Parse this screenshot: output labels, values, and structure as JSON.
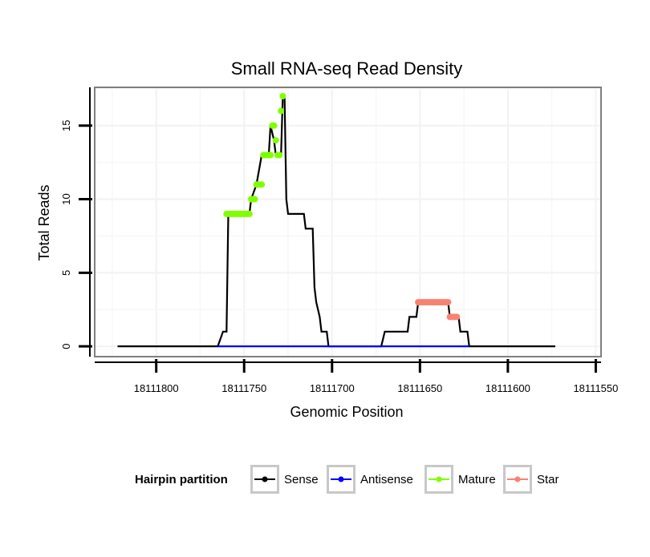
{
  "chart_data": {
    "type": "line",
    "title": "Small RNA-seq Read Density",
    "xlabel": "Genomic Position",
    "ylabel": "Total Reads",
    "x_reversed": true,
    "xlim": [
      111835,
      111547
    ],
    "ylim": [
      -0.7,
      17.6
    ],
    "x_ticks": [
      111800,
      111750,
      111700,
      111650,
      111600,
      111550
    ],
    "x_tick_labels": [
      "18111800",
      "18111750",
      "18111700",
      "18111650",
      "18111600",
      "18111550"
    ],
    "y_ticks": [
      0,
      5,
      10,
      15
    ],
    "y_tick_labels": [
      "0",
      "5",
      "10",
      "15"
    ],
    "grid": true,
    "legend": {
      "title": "Hairpin partition",
      "position": "bottom",
      "entries": [
        {
          "label": "Sense",
          "color": "#000000"
        },
        {
          "label": "Antisense",
          "color": "#0000ff"
        },
        {
          "label": "Mature",
          "color": "#7fff00"
        },
        {
          "label": "Star",
          "color": "#fa8072"
        }
      ]
    },
    "series": [
      {
        "name": "Sense",
        "color": "#000000",
        "points": [
          [
            111822,
            0
          ],
          [
            111765,
            0
          ],
          [
            111762,
            1
          ],
          [
            111760,
            1
          ],
          [
            111759,
            9
          ],
          [
            111747,
            9
          ],
          [
            111746,
            10
          ],
          [
            111743,
            11
          ],
          [
            111740,
            13
          ],
          [
            111736,
            13
          ],
          [
            111735,
            15
          ],
          [
            111733,
            14
          ],
          [
            111732,
            13
          ],
          [
            111729,
            13
          ],
          [
            111728,
            17
          ],
          [
            111727,
            17
          ],
          [
            111726,
            10
          ],
          [
            111725,
            9
          ],
          [
            111716,
            9
          ],
          [
            111715,
            8
          ],
          [
            111711,
            8
          ],
          [
            111710,
            4
          ],
          [
            111709,
            3
          ],
          [
            111707,
            2
          ],
          [
            111706,
            1
          ],
          [
            111703,
            1
          ],
          [
            111702,
            0
          ],
          [
            111672,
            0
          ],
          [
            111670,
            1
          ],
          [
            111657,
            1
          ],
          [
            111656,
            2
          ],
          [
            111652,
            2
          ],
          [
            111651,
            3
          ],
          [
            111634,
            3
          ],
          [
            111633,
            2
          ],
          [
            111628,
            2
          ],
          [
            111627,
            1
          ],
          [
            111623,
            1
          ],
          [
            111622,
            0
          ],
          [
            111573,
            0
          ]
        ]
      },
      {
        "name": "Antisense",
        "color": "#0000ff",
        "points": [
          [
            111765,
            0
          ],
          [
            111702,
            0
          ],
          [
            111672,
            0
          ],
          [
            111622,
            0
          ]
        ]
      },
      {
        "name": "Mature",
        "color": "#7fff00",
        "points": [
          [
            111760,
            9
          ],
          [
            111759,
            9
          ],
          [
            111758,
            9
          ],
          [
            111757,
            9
          ],
          [
            111756,
            9
          ],
          [
            111755,
            9
          ],
          [
            111754,
            9
          ],
          [
            111753,
            9
          ],
          [
            111752,
            9
          ],
          [
            111751,
            9
          ],
          [
            111750,
            9
          ],
          [
            111749,
            9
          ],
          [
            111748,
            9
          ],
          [
            111747,
            9
          ],
          [
            111746,
            10
          ],
          [
            111745,
            10
          ],
          [
            111744,
            10
          ],
          [
            111743,
            11
          ],
          [
            111742,
            11
          ],
          [
            111741,
            11
          ],
          [
            111740,
            11
          ],
          [
            111739,
            13
          ],
          [
            111738,
            13
          ],
          [
            111737,
            13
          ],
          [
            111736,
            13
          ],
          [
            111735,
            13
          ],
          [
            111734,
            15
          ],
          [
            111733,
            15
          ],
          [
            111732,
            14
          ],
          [
            111731,
            13
          ],
          [
            111730,
            13
          ],
          [
            111729,
            16
          ],
          [
            111728,
            17
          ]
        ]
      },
      {
        "name": "Star",
        "color": "#fa8072",
        "points": [
          [
            111651,
            3
          ],
          [
            111650,
            3
          ],
          [
            111649,
            3
          ],
          [
            111648,
            3
          ],
          [
            111647,
            3
          ],
          [
            111646,
            3
          ],
          [
            111645,
            3
          ],
          [
            111644,
            3
          ],
          [
            111643,
            3
          ],
          [
            111642,
            3
          ],
          [
            111641,
            3
          ],
          [
            111640,
            3
          ],
          [
            111639,
            3
          ],
          [
            111638,
            3
          ],
          [
            111637,
            3
          ],
          [
            111636,
            3
          ],
          [
            111635,
            3
          ],
          [
            111634,
            3
          ],
          [
            111633,
            2
          ],
          [
            111632,
            2
          ],
          [
            111631,
            2
          ],
          [
            111630,
            2
          ],
          [
            111629,
            2
          ]
        ]
      }
    ]
  }
}
